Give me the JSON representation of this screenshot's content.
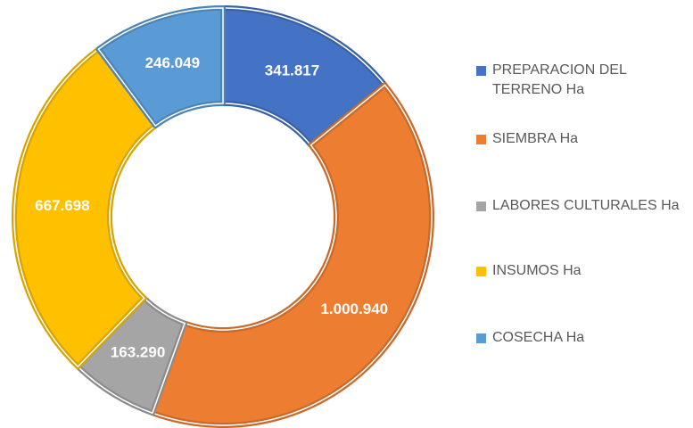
{
  "chart_data": {
    "type": "donut",
    "categories": [
      "PREPARACION DEL TERRENO Ha",
      "SIEMBRA Ha",
      "LABORES CULTURALES Ha",
      "INSUMOS Ha",
      "COSECHA Ha"
    ],
    "values": [
      341817,
      1000940,
      163290,
      667698,
      246049
    ],
    "value_labels": [
      "341.817",
      "1.000.940",
      "163.290",
      "667.698",
      "246.049"
    ],
    "colors": [
      "#4472c4",
      "#ed7d31",
      "#a5a5a5",
      "#ffc000",
      "#5b9bd5"
    ],
    "legend": "right"
  }
}
